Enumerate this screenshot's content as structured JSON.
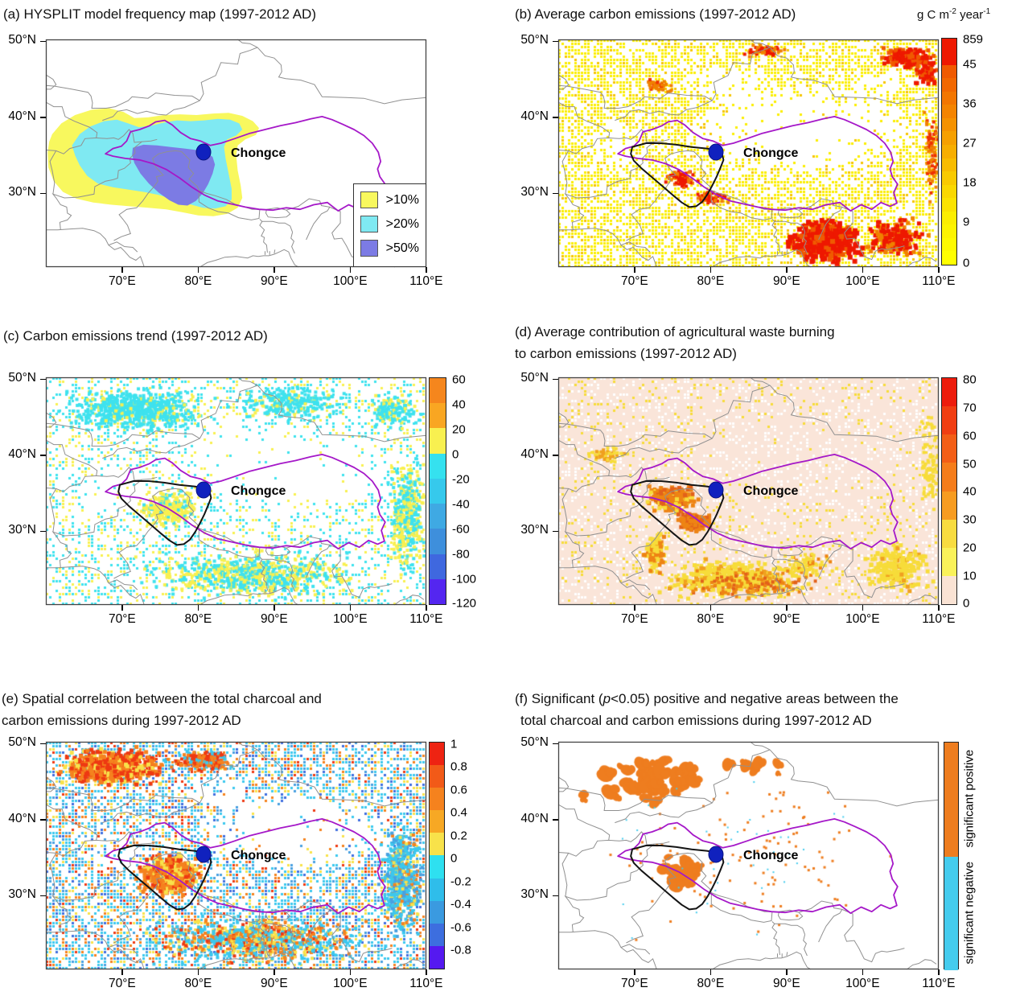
{
  "figure_caption": "Six-panel map figure, Chongce ice core region, 1997-2012 AD",
  "axes": {
    "lat_labels": [
      "50°N",
      "40°N",
      "30°N"
    ],
    "lon_labels": [
      "70°E",
      "80°E",
      "90°E",
      "100°E",
      "110°E"
    ]
  },
  "site": {
    "label": "Chongce",
    "marker_color": "#1021BE"
  },
  "colors": {
    "map_frame": "#444444",
    "country_border": "#909090",
    "plateau_outline": "#A518C8",
    "study_region_outline": "#141414",
    "panel_a_gt10": "#F8F85E",
    "panel_a_gt20": "#7FE9F2",
    "panel_a_gt50": "#7C7BE4"
  },
  "panels": {
    "a": {
      "title": "(a) HYSPLIT model frequency map (1997-2012 AD)",
      "legend": [
        {
          "label": ">10%",
          "color": "#F8F85E"
        },
        {
          "label": ">20%",
          "color": "#7FE9F2"
        },
        {
          "label": ">50%",
          "color": "#7C7BE4"
        }
      ]
    },
    "b": {
      "title": "(b) Average carbon emissions (1997-2012 AD)",
      "unit": {
        "base1": "g C m",
        "sup1": "-2",
        "base2": " year",
        "sup2": "-1"
      },
      "colorbar": {
        "labels": [
          "859",
          "45",
          "36",
          "27",
          "18",
          "9",
          "0"
        ]
      }
    },
    "c": {
      "title": "(c) Carbon emissions trend (1997-2012 AD)",
      "colorbar": {
        "labels": [
          "60",
          "40",
          "20",
          "0",
          "-20",
          "-40",
          "-60",
          "-80",
          "-100",
          "-120"
        ]
      }
    },
    "d": {
      "title_line1": "(d) Average contribution of agricultural waste burning",
      "title_line2": "to carbon emissions (1997-2012 AD)",
      "colorbar": {
        "labels": [
          "80",
          "70",
          "60",
          "50",
          "40",
          "30",
          "20",
          "10",
          "0"
        ]
      }
    },
    "e": {
      "title_line1": "(e) Spatial correlation between the total charcoal and",
      "title_line2": "carbon emissions during 1997-2012 AD",
      "colorbar": {
        "labels": [
          "1",
          "0.8",
          "0.6",
          "0.4",
          "0.2",
          "0",
          "-0.2",
          "-0.4",
          "-0.6",
          "-0.8"
        ]
      }
    },
    "f": {
      "title_pre": "(f) Significant (",
      "title_p": "p",
      "title_post": "<0.05) positive and negative areas between the",
      "title_line2": "total charcoal and carbon emissions during 1997-2012 AD",
      "colorbar": {
        "positive_label": "significant positive",
        "negative_label": "significant negative",
        "positive_color": "#EE7D1F",
        "negative_color": "#45CCEE"
      }
    }
  },
  "chart_data": [
    {
      "id": "a",
      "type": "filled-contour-map",
      "title": "(a) HYSPLIT model frequency map (1997-2012 AD)",
      "extent": {
        "lon_e": [
          60,
          110
        ],
        "lat_n": [
          20.3,
          50.25
        ]
      },
      "lon_ticks": [
        70,
        80,
        90,
        100,
        110
      ],
      "lat_ticks": [
        50,
        40,
        30
      ],
      "contours": [
        {
          "level": ">10%",
          "color": "#F8F85E"
        },
        {
          "level": ">20%",
          "color": "#7FE9F2"
        },
        {
          "level": ">50%",
          "color": "#7C7BE4"
        }
      ],
      "site": {
        "name": "Chongce",
        "lon_e": 80.9,
        "lat_n": 35.3
      }
    },
    {
      "id": "b",
      "type": "heatmap",
      "title": "(b) Average carbon emissions (1997-2012 AD)",
      "unit": "g C m-2 year-1",
      "extent": {
        "lon_e": [
          60,
          110
        ],
        "lat_n": [
          20.3,
          50.25
        ]
      },
      "lon_ticks": [
        70,
        80,
        90,
        100,
        110
      ],
      "lat_ticks": [
        50,
        40,
        30
      ],
      "colorbar_ticks": [
        859,
        45,
        36,
        27,
        18,
        9,
        0
      ],
      "colorbar_range_colors": [
        "red high",
        "orange mid",
        "yellow low"
      ],
      "site": {
        "name": "Chongce",
        "lon_e": 80.9,
        "lat_n": 35.3
      }
    },
    {
      "id": "c",
      "type": "heatmap",
      "title": "(c) Carbon emissions trend (1997-2012 AD)",
      "extent": {
        "lon_e": [
          60,
          110
        ],
        "lat_n": [
          20.3,
          50.25
        ]
      },
      "lon_ticks": [
        70,
        80,
        90,
        100,
        110
      ],
      "lat_ticks": [
        50,
        40,
        30
      ],
      "colorbar_ticks": [
        60,
        40,
        20,
        0,
        -20,
        -40,
        -60,
        -80,
        -100,
        -120
      ],
      "site": {
        "name": "Chongce",
        "lon_e": 80.9,
        "lat_n": 35.3
      }
    },
    {
      "id": "d",
      "type": "heatmap",
      "title": "(d) Average contribution of agricultural waste burning to carbon emissions (1997-2012 AD)",
      "extent": {
        "lon_e": [
          60,
          110
        ],
        "lat_n": [
          20.3,
          50.25
        ]
      },
      "lon_ticks": [
        70,
        80,
        90,
        100,
        110
      ],
      "lat_ticks": [
        50,
        40,
        30
      ],
      "colorbar_ticks": [
        80,
        70,
        60,
        50,
        40,
        30,
        20,
        10,
        0
      ],
      "site": {
        "name": "Chongce",
        "lon_e": 80.9,
        "lat_n": 35.3
      }
    },
    {
      "id": "e",
      "type": "heatmap",
      "title": "(e) Spatial correlation between the total charcoal and carbon emissions during 1997-2012 AD",
      "extent": {
        "lon_e": [
          60,
          110
        ],
        "lat_n": [
          20.3,
          50.25
        ]
      },
      "lon_ticks": [
        70,
        80,
        90,
        100,
        110
      ],
      "lat_ticks": [
        50,
        40,
        30
      ],
      "colorbar_ticks": [
        1,
        0.8,
        0.6,
        0.4,
        0.2,
        0,
        -0.2,
        -0.4,
        -0.6,
        -0.8
      ],
      "site": {
        "name": "Chongce",
        "lon_e": 80.9,
        "lat_n": 35.3
      }
    },
    {
      "id": "f",
      "type": "significance-map",
      "title": "(f) Significant (p<0.05) positive and negative areas between the total charcoal and carbon emissions during 1997-2012 AD",
      "extent": {
        "lon_e": [
          60,
          110
        ],
        "lat_n": [
          20.3,
          50.25
        ]
      },
      "lon_ticks": [
        70,
        80,
        90,
        100,
        110
      ],
      "lat_ticks": [
        50,
        40,
        30
      ],
      "classes": [
        {
          "label": "significant positive",
          "color": "#EE7D1F"
        },
        {
          "label": "significant negative",
          "color": "#45CCEE"
        }
      ],
      "site": {
        "name": "Chongce",
        "lon_e": 80.9,
        "lat_n": 35.3
      }
    }
  ]
}
